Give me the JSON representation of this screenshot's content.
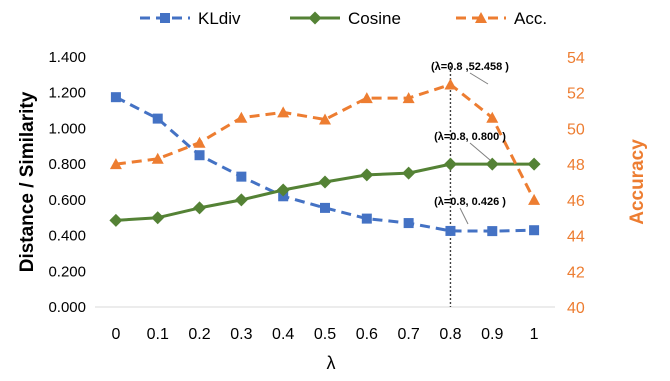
{
  "chart_data": {
    "type": "line",
    "xlabel": "λ",
    "ylabel_left": "Distance / Similarity",
    "ylabel_right": "Accuracy",
    "categories": [
      "0",
      "0.1",
      "0.2",
      "0.3",
      "0.4",
      "0.5",
      "0.6",
      "0.7",
      "0.8",
      "0.9",
      "1"
    ],
    "ylim_left": [
      0,
      1.4
    ],
    "yticks_left": [
      "0.000",
      "0.200",
      "0.400",
      "0.600",
      "0.800",
      "1.000",
      "1.200",
      "1.400"
    ],
    "ylim_right": [
      40,
      54
    ],
    "yticks_right": [
      "40",
      "42",
      "44",
      "46",
      "48",
      "50",
      "52",
      "54"
    ],
    "legend_position": "top",
    "series": [
      {
        "name": "KLdiv",
        "axis": "left",
        "color": "#4472C4",
        "line_style": "dashed",
        "marker": "square",
        "values": [
          1.175,
          1.055,
          0.85,
          0.73,
          0.62,
          0.555,
          0.495,
          0.47,
          0.426,
          0.425,
          0.43
        ]
      },
      {
        "name": "Cosine",
        "axis": "left",
        "color": "#548235",
        "line_style": "solid",
        "marker": "diamond",
        "values": [
          0.485,
          0.5,
          0.555,
          0.6,
          0.655,
          0.7,
          0.74,
          0.75,
          0.8,
          0.8,
          0.8
        ]
      },
      {
        "name": "Acc.",
        "axis": "right",
        "color": "#ED7D31",
        "line_style": "dashed",
        "marker": "triangle",
        "values": [
          48.0,
          48.3,
          49.2,
          50.6,
          50.9,
          50.5,
          51.7,
          51.7,
          52.458,
          50.6,
          46.0
        ]
      }
    ],
    "reference_line": {
      "x_index": 8,
      "style": "dotted"
    },
    "annotations": [
      {
        "text": "(λ=0.8 ,52.458 )",
        "series_index": 2,
        "point_index": 8
      },
      {
        "text": "(λ=0.8, 0.800 )",
        "series_index": 1,
        "point_index": 8
      },
      {
        "text": "(λ=0.8, 0.426 )",
        "series_index": 0,
        "point_index": 8
      }
    ]
  }
}
